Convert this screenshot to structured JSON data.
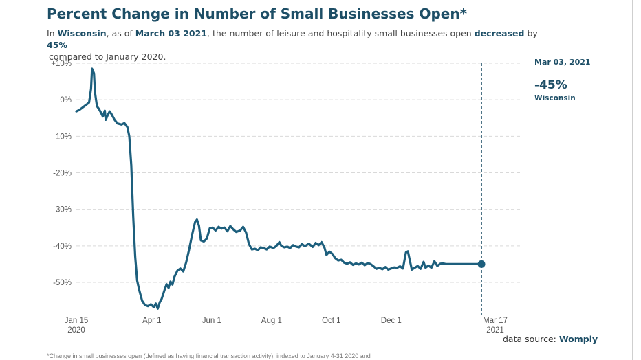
{
  "title": "Percent Change in Number of Small Businesses Open*",
  "subtitle": {
    "t1": "In ",
    "state": "Wisconsin",
    "t2": ", as of ",
    "date": "March 03 2021",
    "t3": ", the number of leisure and hospitality small businesses open ",
    "direction": "decreased",
    "t4": " by ",
    "amount": "45%",
    "line2": "compared to January 2020."
  },
  "annotation": {
    "date": "Mar 03, 2021",
    "value": "-45%",
    "location": "Wisconsin"
  },
  "source": {
    "label": "data source:",
    "name": "Womply"
  },
  "footnote": "*Change in small businesses open (defined as having financial transaction activity), indexed to January 4-31 2020 and",
  "colors": {
    "line": "#1d5f7d",
    "text_accent": "#1d4e66",
    "grid": "#d9d9d9"
  },
  "chart_data": {
    "type": "line",
    "title": "Percent Change in Number of Small Businesses Open*",
    "xlabel": "",
    "ylabel": "",
    "y_ticks": [
      {
        "value": 10,
        "label": "+10%"
      },
      {
        "value": 0,
        "label": "0%"
      },
      {
        "value": -10,
        "label": "-10%"
      },
      {
        "value": -20,
        "label": "-20%"
      },
      {
        "value": -30,
        "label": "-30%"
      },
      {
        "value": -40,
        "label": "-40%"
      },
      {
        "value": -50,
        "label": "-50%"
      }
    ],
    "x_ticks": [
      {
        "date": "2020-01-15",
        "label": "Jan 15",
        "label2": "2020"
      },
      {
        "date": "2020-04-01",
        "label": "Apr 1",
        "label2": ""
      },
      {
        "date": "2020-06-01",
        "label": "Jun 1",
        "label2": ""
      },
      {
        "date": "2020-08-01",
        "label": "Aug 1",
        "label2": ""
      },
      {
        "date": "2020-10-01",
        "label": "Oct 1",
        "label2": ""
      },
      {
        "date": "2020-12-01",
        "label": "Dec 1",
        "label2": ""
      },
      {
        "date": "2021-03-17",
        "label": "Mar 17",
        "label2": "2021"
      }
    ],
    "ylim": [
      -58,
      11
    ],
    "grid": true,
    "reference_line": {
      "date": "2021-03-03"
    },
    "endpoint": {
      "date": "2021-03-03",
      "value": -45
    },
    "series": [
      {
        "values": [
          [
            "2020-01-15",
            -3.2
          ],
          [
            "2020-01-18",
            -2.8
          ],
          [
            "2020-01-21",
            -2.2
          ],
          [
            "2020-01-24",
            -1.6
          ],
          [
            "2020-01-26",
            -1.2
          ],
          [
            "2020-01-28",
            -0.8
          ],
          [
            "2020-01-30",
            3.0
          ],
          [
            "2020-01-31",
            8.5
          ],
          [
            "2020-02-02",
            7.2
          ],
          [
            "2020-02-03",
            2.0
          ],
          [
            "2020-02-05",
            -1.8
          ],
          [
            "2020-02-07",
            -2.5
          ],
          [
            "2020-02-09",
            -3.5
          ],
          [
            "2020-02-11",
            -4.6
          ],
          [
            "2020-02-13",
            -3.0
          ],
          [
            "2020-02-14",
            -5.5
          ],
          [
            "2020-02-16",
            -4.2
          ],
          [
            "2020-02-18",
            -3.2
          ],
          [
            "2020-02-20",
            -4.0
          ],
          [
            "2020-02-23",
            -5.5
          ],
          [
            "2020-02-26",
            -6.5
          ],
          [
            "2020-03-01",
            -6.8
          ],
          [
            "2020-03-04",
            -6.4
          ],
          [
            "2020-03-07",
            -7.5
          ],
          [
            "2020-03-09",
            -10.0
          ],
          [
            "2020-03-11",
            -18.0
          ],
          [
            "2020-03-13",
            -32.0
          ],
          [
            "2020-03-15",
            -43.0
          ],
          [
            "2020-03-17",
            -49.5
          ],
          [
            "2020-03-19",
            -52.0
          ],
          [
            "2020-03-22",
            -55.0
          ],
          [
            "2020-03-25",
            -56.2
          ],
          [
            "2020-03-28",
            -56.5
          ],
          [
            "2020-03-31",
            -56.0
          ],
          [
            "2020-04-03",
            -56.8
          ],
          [
            "2020-04-05",
            -55.8
          ],
          [
            "2020-04-07",
            -57.2
          ],
          [
            "2020-04-09",
            -55.5
          ],
          [
            "2020-04-11",
            -54.5
          ],
          [
            "2020-04-14",
            -52.0
          ],
          [
            "2020-04-16",
            -50.5
          ],
          [
            "2020-04-18",
            -51.5
          ],
          [
            "2020-04-20",
            -49.8
          ],
          [
            "2020-04-22",
            -50.6
          ],
          [
            "2020-04-24",
            -48.5
          ],
          [
            "2020-04-27",
            -46.8
          ],
          [
            "2020-04-30",
            -46.2
          ],
          [
            "2020-05-03",
            -47.0
          ],
          [
            "2020-05-06",
            -44.5
          ],
          [
            "2020-05-09",
            -41.0
          ],
          [
            "2020-05-12",
            -37.0
          ],
          [
            "2020-05-15",
            -33.5
          ],
          [
            "2020-05-17",
            -32.8
          ],
          [
            "2020-05-19",
            -34.5
          ],
          [
            "2020-05-21",
            -38.5
          ],
          [
            "2020-05-24",
            -38.8
          ],
          [
            "2020-05-27",
            -38.0
          ],
          [
            "2020-05-30",
            -35.2
          ],
          [
            "2020-06-02",
            -35.0
          ],
          [
            "2020-06-05",
            -35.8
          ],
          [
            "2020-06-08",
            -34.8
          ],
          [
            "2020-06-11",
            -35.3
          ],
          [
            "2020-06-14",
            -35.0
          ],
          [
            "2020-06-17",
            -36.0
          ],
          [
            "2020-06-20",
            -34.6
          ],
          [
            "2020-06-23",
            -35.5
          ],
          [
            "2020-06-26",
            -36.2
          ],
          [
            "2020-06-30",
            -35.8
          ],
          [
            "2020-07-03",
            -34.8
          ],
          [
            "2020-07-06",
            -36.3
          ],
          [
            "2020-07-09",
            -39.5
          ],
          [
            "2020-07-12",
            -41.0
          ],
          [
            "2020-07-15",
            -40.8
          ],
          [
            "2020-07-18",
            -41.2
          ],
          [
            "2020-07-21",
            -40.4
          ],
          [
            "2020-07-24",
            -40.6
          ],
          [
            "2020-07-27",
            -41.0
          ],
          [
            "2020-07-30",
            -40.2
          ],
          [
            "2020-08-03",
            -40.6
          ],
          [
            "2020-08-06",
            -40.0
          ],
          [
            "2020-08-09",
            -39.0
          ],
          [
            "2020-08-11",
            -40.0
          ],
          [
            "2020-08-14",
            -40.4
          ],
          [
            "2020-08-17",
            -40.2
          ],
          [
            "2020-08-20",
            -40.6
          ],
          [
            "2020-08-23",
            -39.8
          ],
          [
            "2020-08-26",
            -40.2
          ],
          [
            "2020-08-29",
            -40.4
          ],
          [
            "2020-09-01",
            -39.5
          ],
          [
            "2020-09-04",
            -40.1
          ],
          [
            "2020-09-08",
            -39.4
          ],
          [
            "2020-09-12",
            -40.3
          ],
          [
            "2020-09-15",
            -39.2
          ],
          [
            "2020-09-18",
            -39.8
          ],
          [
            "2020-09-21",
            -39.0
          ],
          [
            "2020-09-24",
            -40.5
          ],
          [
            "2020-09-26",
            -42.5
          ],
          [
            "2020-09-29",
            -41.6
          ],
          [
            "2020-10-02",
            -42.2
          ],
          [
            "2020-10-05",
            -43.4
          ],
          [
            "2020-10-08",
            -44.0
          ],
          [
            "2020-10-11",
            -43.8
          ],
          [
            "2020-10-14",
            -44.6
          ],
          [
            "2020-10-17",
            -44.9
          ],
          [
            "2020-10-20",
            -44.5
          ],
          [
            "2020-10-23",
            -45.2
          ],
          [
            "2020-10-26",
            -44.8
          ],
          [
            "2020-10-29",
            -45.1
          ],
          [
            "2020-11-01",
            -44.6
          ],
          [
            "2020-11-04",
            -45.3
          ],
          [
            "2020-11-07",
            -44.7
          ],
          [
            "2020-11-10",
            -45.0
          ],
          [
            "2020-11-13",
            -45.6
          ],
          [
            "2020-11-16",
            -46.3
          ],
          [
            "2020-11-19",
            -46.0
          ],
          [
            "2020-11-22",
            -46.4
          ],
          [
            "2020-11-25",
            -45.8
          ],
          [
            "2020-11-28",
            -46.5
          ],
          [
            "2020-12-01",
            -46.2
          ],
          [
            "2020-12-04",
            -45.9
          ],
          [
            "2020-12-07",
            -46.0
          ],
          [
            "2020-12-10",
            -45.6
          ],
          [
            "2020-12-13",
            -46.2
          ],
          [
            "2020-12-16",
            -41.8
          ],
          [
            "2020-12-18",
            -41.5
          ],
          [
            "2020-12-20",
            -44.0
          ],
          [
            "2020-12-22",
            -46.5
          ],
          [
            "2020-12-25",
            -46.0
          ],
          [
            "2020-12-28",
            -45.5
          ],
          [
            "2020-12-31",
            -46.3
          ],
          [
            "2021-01-03",
            -44.4
          ],
          [
            "2021-01-05",
            -46.0
          ],
          [
            "2021-01-08",
            -45.4
          ],
          [
            "2021-01-11",
            -46.0
          ],
          [
            "2021-01-14",
            -44.2
          ],
          [
            "2021-01-17",
            -45.5
          ],
          [
            "2021-01-20",
            -44.9
          ],
          [
            "2021-01-23",
            -44.8
          ],
          [
            "2021-01-26",
            -45.0
          ]
        ]
      }
    ]
  }
}
